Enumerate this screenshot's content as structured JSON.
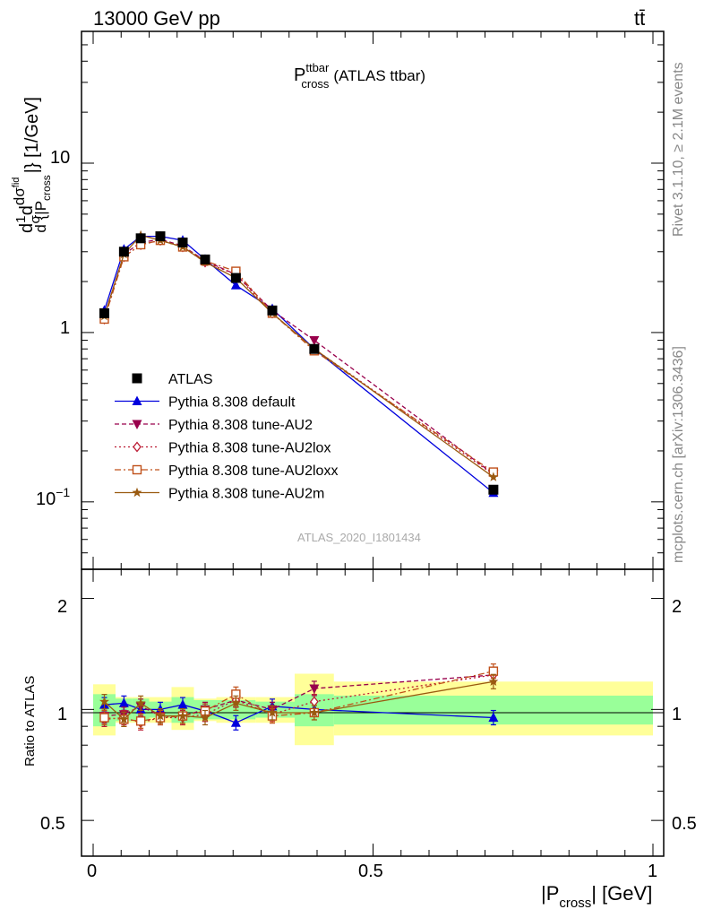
{
  "header": {
    "left": "13000 GeV pp",
    "right": "tt̄"
  },
  "side": {
    "rivet": "Rivet 3.1.10, ≥ 2.1M events",
    "mcplots": "mcplots.cern.ch [arXiv:1306.3436]"
  },
  "plot": {
    "title_main": "P",
    "title_sup": "ttbar",
    "title_sub": "cross",
    "title_rest": "(ATLAS ttbar)",
    "watermark": "ATLAS_2020_I1801434",
    "ylabel_parts": {
      "a": "d",
      "b": "1",
      "c": "σ",
      "d": "d",
      "e": "dσ",
      "f": "fid",
      "g": "d {|P",
      "h": "cross",
      "i": "|} [1/GeV]"
    },
    "ratio_ylabel": "Ratio to ATLAS",
    "xlabel_main": "|P",
    "xlabel_sub": "cross",
    "xlabel_rest": "| [GeV]",
    "main_y_ticks": [
      "10",
      "1"
    ],
    "main_y_tick_exp": {
      "base": "10",
      "exp": "−1"
    },
    "ratio_y_ticks": [
      "2",
      "1",
      "0.5"
    ],
    "x_ticks": [
      "0",
      "0.5",
      "1"
    ]
  },
  "colors": {
    "ATLAS": "#000000",
    "default": "#0000dd",
    "AU2": "#99004c",
    "AU2lox": "#bb1a33",
    "AU2loxx": "#c0501a",
    "AU2m": "#9a5a10",
    "band_inner": "#99ff99",
    "band_outer": "#ffff99"
  },
  "chart_data": {
    "type": "line",
    "title": "P_cross^ttbar (ATLAS ttbar)",
    "xlabel": "|P_cross| [GeV]",
    "ylabel": "d1/σ dσ_fid/d{|P_cross|} [1/GeV]",
    "xlim": [
      0,
      1
    ],
    "ylim_main": [
      0.04,
      60
    ],
    "yscale_main": "log",
    "ylim_ratio": [
      0.4,
      2.4
    ],
    "yscale_ratio": "log",
    "legend_position": "bottom-left",
    "x": [
      0.02,
      0.055,
      0.085,
      0.12,
      0.16,
      0.2,
      0.255,
      0.32,
      0.395,
      0.715
    ],
    "x_bin_edges": [
      0.0,
      0.04,
      0.07,
      0.1,
      0.14,
      0.18,
      0.22,
      0.29,
      0.36,
      0.43,
      1.0
    ],
    "data": {
      "name": "ATLAS",
      "values": [
        1.3,
        3.0,
        3.6,
        3.7,
        3.4,
        2.7,
        2.1,
        1.35,
        0.8,
        0.118
      ],
      "ratio_band_inner": [
        [
          0.9,
          1.1
        ],
        [
          0.93,
          1.07
        ],
        [
          0.93,
          1.07
        ],
        [
          0.95,
          1.05
        ],
        [
          0.92,
          1.08
        ],
        [
          0.94,
          1.06
        ],
        [
          0.94,
          1.06
        ],
        [
          0.95,
          1.05
        ],
        [
          0.9,
          1.1
        ],
        [
          0.91,
          1.09
        ]
      ],
      "ratio_band_outer": [
        [
          0.85,
          1.17
        ],
        [
          0.92,
          1.08
        ],
        [
          0.92,
          1.08
        ],
        [
          0.92,
          1.08
        ],
        [
          0.88,
          1.15
        ],
        [
          0.93,
          1.07
        ],
        [
          0.92,
          1.08
        ],
        [
          0.92,
          1.08
        ],
        [
          0.8,
          1.25
        ],
        [
          0.85,
          1.19
        ]
      ]
    },
    "series": [
      {
        "name": "Pythia 8.308 default",
        "key": "default",
        "style": "solid",
        "marker": "triangle-up",
        "values": [
          1.35,
          3.1,
          3.7,
          3.7,
          3.5,
          2.7,
          1.9,
          1.38,
          0.8,
          0.113
        ],
        "ratio": [
          1.03,
          1.04,
          1.0,
          1.0,
          1.03,
          0.99,
          0.92,
          1.02,
          1.0,
          0.95
        ]
      },
      {
        "name": "Pythia 8.308 tune-AU2",
        "key": "AU2",
        "style": "dashed",
        "marker": "triangle-down",
        "values": [
          1.25,
          2.9,
          3.4,
          3.55,
          3.25,
          2.65,
          2.2,
          1.35,
          0.9,
          0.146
        ],
        "ratio": [
          0.96,
          0.97,
          1.02,
          0.96,
          0.96,
          1.0,
          1.06,
          1.0,
          1.14,
          1.24
        ]
      },
      {
        "name": "Pythia 8.308 tune-AU2lox",
        "key": "AU2lox",
        "style": "dotted",
        "marker": "diamond-open",
        "values": [
          1.2,
          2.8,
          3.3,
          3.5,
          3.2,
          2.6,
          2.2,
          1.3,
          0.8,
          0.145
        ],
        "ratio": [
          0.94,
          0.95,
          0.92,
          0.95,
          0.95,
          0.97,
          1.06,
          0.97,
          1.05,
          1.24
        ]
      },
      {
        "name": "Pythia 8.308 tune-AU2loxx",
        "key": "AU2loxx",
        "style": "dashdot",
        "marker": "square-open",
        "values": [
          1.2,
          2.8,
          3.3,
          3.5,
          3.2,
          2.65,
          2.3,
          1.3,
          0.78,
          0.15
        ],
        "ratio": [
          0.95,
          0.94,
          0.93,
          0.95,
          0.96,
          0.99,
          1.1,
          0.96,
          0.98,
          1.27
        ]
      },
      {
        "name": "Pythia 8.308 tune-AU2m",
        "key": "AU2m",
        "style": "solid",
        "marker": "star",
        "values": [
          1.25,
          2.9,
          3.75,
          3.5,
          3.2,
          2.6,
          2.1,
          1.3,
          0.8,
          0.14
        ],
        "ratio": [
          1.05,
          0.94,
          1.04,
          0.96,
          0.96,
          0.95,
          1.04,
          0.98,
          0.98,
          1.19
        ]
      }
    ]
  }
}
